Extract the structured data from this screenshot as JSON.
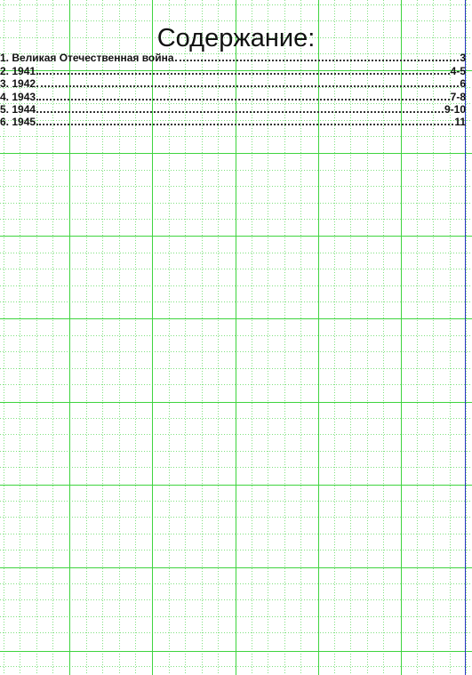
{
  "document": {
    "title": "Содержание:",
    "toc": [
      {
        "label": "1. Великая Отечественная война",
        "page": "3"
      },
      {
        "label": "2. 1941",
        "page": "4-5"
      },
      {
        "label": "3. 1942",
        "page": "6"
      },
      {
        "label": "4. 1943",
        "page": "7-8"
      },
      {
        "label": "5. 1944",
        "page": "9-10"
      },
      {
        "label": "6. 1945",
        "page": "11"
      }
    ]
  },
  "colors": {
    "major_grid": "#3fd43f",
    "minor_grid": "#7fe07f",
    "page_edge": "#2a35c8",
    "text": "#111111"
  }
}
